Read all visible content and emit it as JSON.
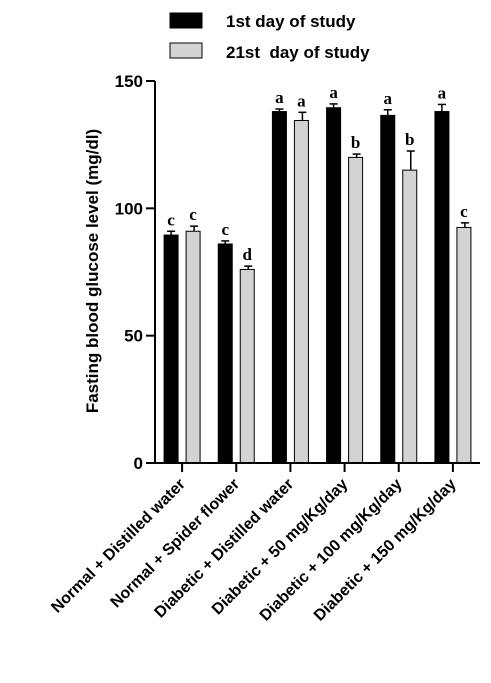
{
  "chart_data": {
    "type": "bar",
    "ylabel": "Fasting blood glucose level (mg/dl)",
    "ylim": [
      0,
      150
    ],
    "yticks": [
      "0",
      "50",
      "100",
      "150"
    ],
    "grid": false,
    "legend_position": "top",
    "categories": [
      "Normal + Distilled water",
      "Normal + Spider flower",
      "Diabetic + Distilled water",
      "Diabetic + 50 mg/Kg/day",
      "Diabetic + 100 mg/Kg/day",
      "Diabetic + 150 mg/Kg/day"
    ],
    "series": [
      {
        "name": "1st day of study",
        "color": "#000000",
        "values": [
          89.5,
          86,
          138,
          139.5,
          136.5,
          138
        ],
        "errors": [
          1.5,
          1.2,
          1.0,
          1.5,
          2.2,
          2.8
        ],
        "letters": [
          "c",
          "c",
          "a",
          "a",
          "a",
          "a"
        ]
      },
      {
        "name": "21st  day of study",
        "color": "#d3d3d3",
        "values": [
          91,
          76,
          134.5,
          120,
          115,
          92.5
        ],
        "errors": [
          2.0,
          1.3,
          3.2,
          1.3,
          7.5,
          1.8
        ],
        "letters": [
          "c",
          "d",
          "a",
          "b",
          "b",
          "c"
        ]
      }
    ]
  }
}
